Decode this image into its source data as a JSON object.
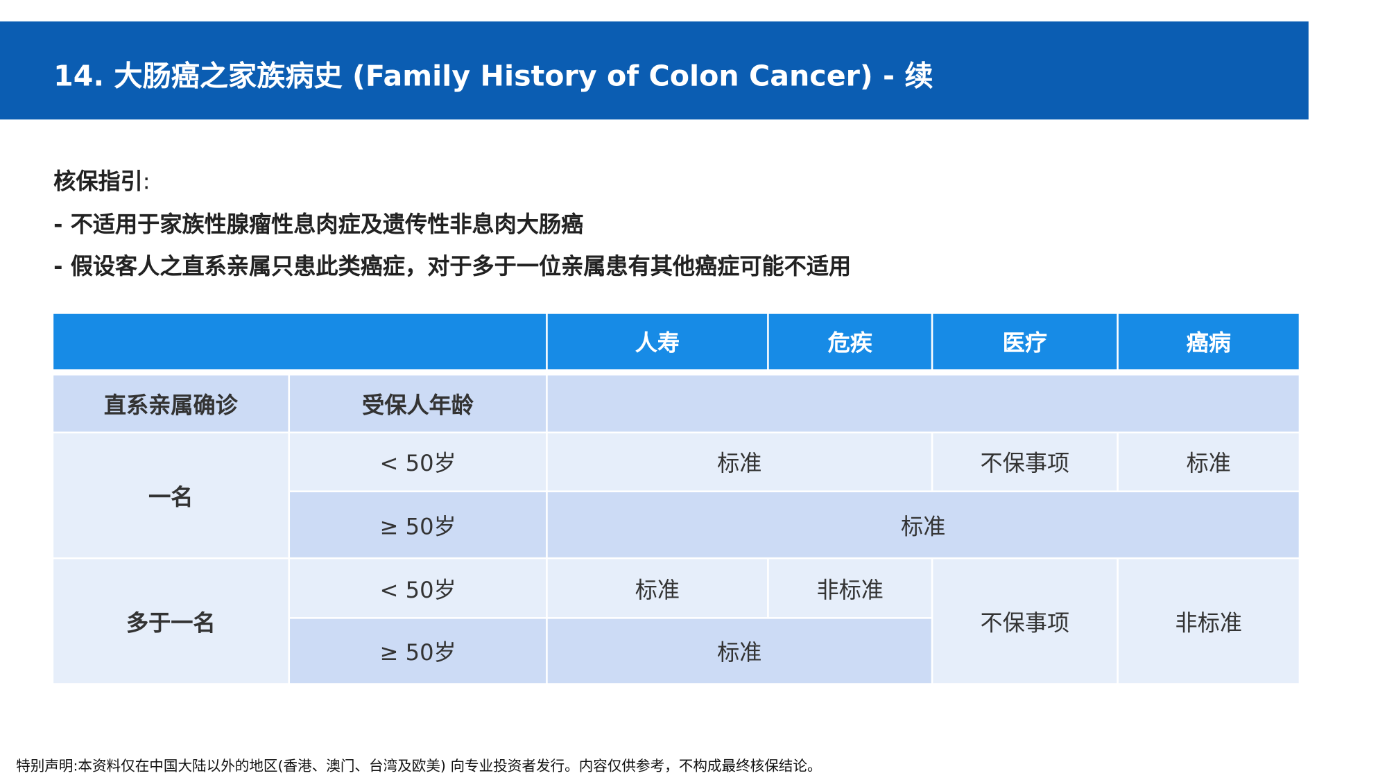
{
  "header": {
    "title": "14. 大肠癌之家族病史 (Family History of Colon Cancer) - 续"
  },
  "guidance": {
    "heading": "核保指引",
    "separator": ":",
    "items": [
      "- 不适用于家族性腺瘤性息肉症及遗传性非息肉大肠癌",
      "- 假设客人之直系亲属只患此类癌症，对于多于一位亲属患有其他癌症可能不适用"
    ]
  },
  "table": {
    "columns": [
      "人寿",
      "危疾",
      "医疗",
      "癌病"
    ],
    "subheaders": [
      "直系亲属确诊",
      "受保人年龄"
    ],
    "groups": [
      {
        "label": "一名",
        "rows": [
          {
            "age": "< 50岁",
            "cells": [
              "标准",
              "不保事项",
              "标准"
            ]
          },
          {
            "age": "≥ 50岁",
            "cells": [
              "标准"
            ]
          }
        ]
      },
      {
        "label": "多于一名",
        "rows": [
          {
            "age": "< 50岁",
            "cells": [
              "标准",
              "非标准",
              "不保事项",
              "非标准"
            ]
          },
          {
            "age": "≥ 50岁",
            "cells": [
              "标准"
            ]
          }
        ]
      }
    ]
  },
  "footer": "特别声明:本资料仅在中国大陆以外的地区(香港、澳门、台湾及欧美) 向专业投资者发行。内容仅供参考，不构成最终核保结论。"
}
